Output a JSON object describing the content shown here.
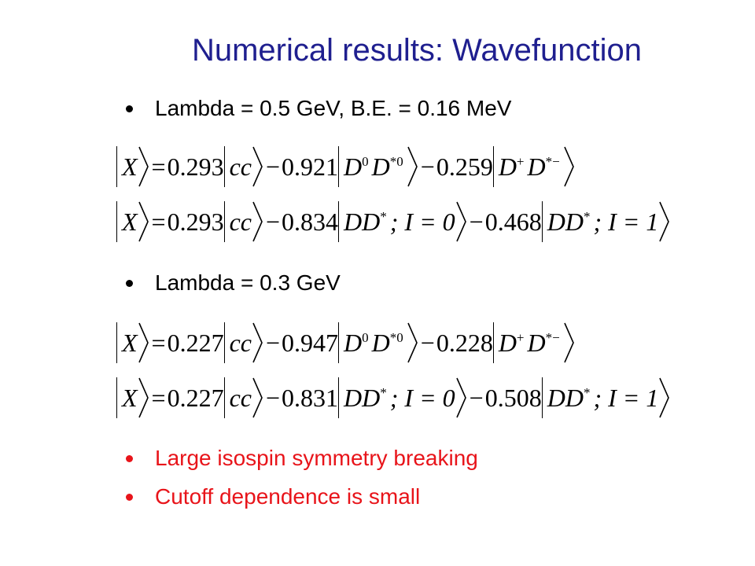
{
  "title": "Numerical results: Wavefunction",
  "sections": [
    {
      "bullet": "Lambda = 0.5 GeV, B.E. = 0.16 MeV",
      "equations": [
        {
          "lhs": "X",
          "terms": [
            {
              "op": "=",
              "coef": 0.293,
              "ket": [
                {
                  "text": "cc"
                }
              ]
            },
            {
              "op": "−",
              "coef": 0.921,
              "ket": [
                {
                  "text": "D",
                  "sup": "0"
                },
                {
                  "text": "D",
                  "sup": "*0"
                }
              ]
            },
            {
              "op": "−",
              "coef": 0.259,
              "ket": [
                {
                  "text": "D",
                  "sup": "+"
                },
                {
                  "text": "D",
                  "sup": "*−"
                }
              ]
            }
          ]
        },
        {
          "lhs": "X",
          "terms": [
            {
              "op": "=",
              "coef": 0.293,
              "ket": [
                {
                  "text": "cc"
                }
              ]
            },
            {
              "op": "−",
              "coef": 0.834,
              "ket": [
                {
                  "text": "DD",
                  "sup": "*"
                },
                {
                  "text": "; I = 0"
                }
              ]
            },
            {
              "op": "−",
              "coef": 0.468,
              "ket": [
                {
                  "text": "DD",
                  "sup": "*"
                },
                {
                  "text": "; I = 1"
                }
              ]
            }
          ]
        }
      ]
    },
    {
      "bullet": "Lambda = 0.3 GeV",
      "equations": [
        {
          "lhs": "X",
          "terms": [
            {
              "op": "=",
              "coef": 0.227,
              "ket": [
                {
                  "text": "cc"
                }
              ]
            },
            {
              "op": "−",
              "coef": 0.947,
              "ket": [
                {
                  "text": "D",
                  "sup": "0"
                },
                {
                  "text": "D",
                  "sup": "*0"
                }
              ]
            },
            {
              "op": "−",
              "coef": 0.228,
              "ket": [
                {
                  "text": "D",
                  "sup": "+"
                },
                {
                  "text": "D",
                  "sup": "*−"
                }
              ]
            }
          ]
        },
        {
          "lhs": "X",
          "terms": [
            {
              "op": "=",
              "coef": 0.227,
              "ket": [
                {
                  "text": "cc"
                }
              ]
            },
            {
              "op": "−",
              "coef": 0.831,
              "ket": [
                {
                  "text": "DD",
                  "sup": "*"
                },
                {
                  "text": "; I = 0"
                }
              ]
            },
            {
              "op": "−",
              "coef": 0.508,
              "ket": [
                {
                  "text": "DD",
                  "sup": "*"
                },
                {
                  "text": "; I = 1"
                }
              ]
            }
          ]
        }
      ]
    }
  ],
  "notes": [
    "Large isospin symmetry breaking",
    "Cutoff dependence is small"
  ]
}
